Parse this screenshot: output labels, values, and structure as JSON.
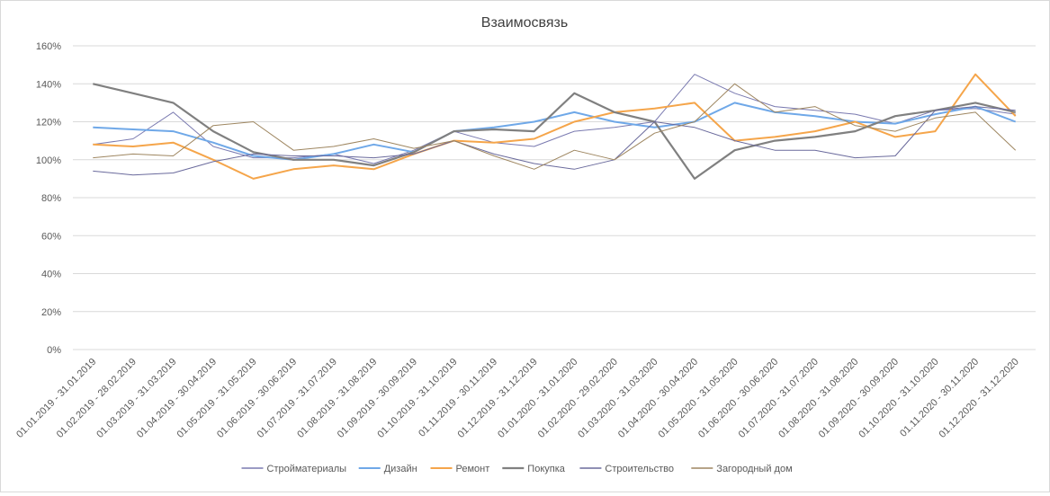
{
  "chart_data": {
    "type": "line",
    "title": "Взаимосвязь",
    "xlabel": "",
    "ylabel": "",
    "ylim": [
      0,
      160
    ],
    "y_unit": "%",
    "yticks": [
      "0%",
      "20%",
      "40%",
      "60%",
      "80%",
      "100%",
      "120%",
      "140%",
      "160%"
    ],
    "grid": true,
    "legend_position": "bottom",
    "categories": [
      "01.01.2019 - 31.01.2019",
      "01.02.2019 - 28.02.2019",
      "01.03.2019 - 31.03.2019",
      "01.04.2019 - 30.04.2019",
      "01.05.2019 - 31.05.2019",
      "01.06.2019 - 30.06.2019",
      "01.07.2019 - 31.07.2019",
      "01.08.2019 - 31.08.2019",
      "01.09.2019 - 30.09.2019",
      "01.10.2019 - 31.10.2019",
      "01.11.2019 - 30.11.2019",
      "01.12.2019 - 31.12.2019",
      "01.01.2020 - 31.01.2020",
      "01.02.2020 - 29.02.2020",
      "01.03.2020 - 31.03.2020",
      "01.04.2020 - 30.04.2020",
      "01.05.2020 - 31.05.2020",
      "01.06.2020 - 30.06.2020",
      "01.07.2020 - 31.07.2020",
      "01.08.2020 - 31.08.2020",
      "01.09.2020 - 30.09.2020",
      "01.10.2020 - 31.10.2020",
      "01.11.2020 - 30.11.2020",
      "01.12.2020 - 31.12.2020"
    ],
    "series": [
      {
        "name": "Стройматериалы",
        "color": "#7a7ab0",
        "width": 1,
        "values": [
          108,
          111,
          125,
          107,
          101,
          101,
          103,
          98,
          105,
          115,
          109,
          107,
          115,
          117,
          120,
          145,
          135,
          128,
          126,
          124,
          119,
          126,
          127,
          124
        ]
      },
      {
        "name": "Дизайн",
        "color": "#6fa8e8",
        "width": 2,
        "values": [
          117,
          116,
          115,
          109,
          102,
          100,
          103,
          108,
          104,
          115,
          117,
          120,
          125,
          120,
          117,
          120,
          130,
          125,
          123,
          120,
          119,
          124,
          128,
          120
        ]
      },
      {
        "name": "Ремонт",
        "color": "#f5a54a",
        "width": 2,
        "values": [
          108,
          107,
          109,
          100,
          90,
          95,
          97,
          95,
          103,
          110,
          109,
          111,
          120,
          125,
          127,
          130,
          110,
          112,
          115,
          120,
          112,
          115,
          145,
          123
        ]
      },
      {
        "name": "Покупка",
        "color": "#808080",
        "width": 2.2,
        "values": [
          140,
          135,
          130,
          115,
          104,
          100,
          100,
          97,
          104,
          115,
          116,
          115,
          135,
          125,
          120,
          90,
          105,
          110,
          112,
          115,
          123,
          126,
          130,
          125
        ]
      },
      {
        "name": "Строительство",
        "color": "#6a6a9c",
        "width": 1,
        "values": [
          94,
          92,
          93,
          99,
          103,
          102,
          102,
          101,
          103,
          110,
          103,
          98,
          95,
          100,
          120,
          117,
          110,
          105,
          105,
          101,
          102,
          126,
          128,
          126
        ]
      },
      {
        "name": "Загородный дом",
        "color": "#9e8660",
        "width": 1,
        "values": [
          101,
          103,
          102,
          118,
          120,
          105,
          107,
          111,
          106,
          110,
          102,
          95,
          105,
          100,
          114,
          120,
          140,
          125,
          128,
          118,
          115,
          122,
          125,
          105
        ]
      }
    ]
  }
}
